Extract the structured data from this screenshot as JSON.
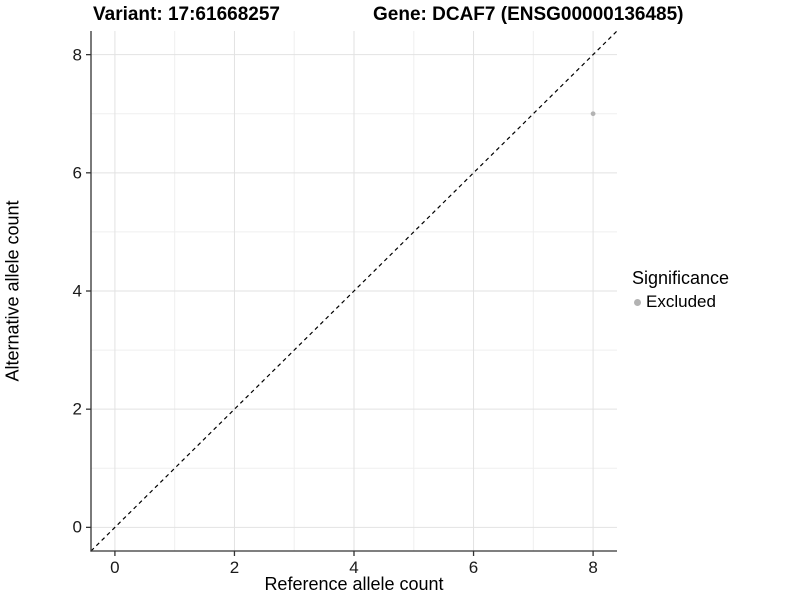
{
  "chart_data": {
    "type": "scatter",
    "title_left": "Variant: 17:61668257",
    "title_right": "Gene: DCAF7 (ENSG00000136485)",
    "xlabel": "Reference allele count",
    "ylabel": "Alternative allele count",
    "xlim": [
      -0.4,
      8.4
    ],
    "ylim": [
      -0.4,
      8.4
    ],
    "x_major_ticks": [
      0,
      2,
      4,
      6,
      8
    ],
    "y_major_ticks": [
      0,
      2,
      4,
      6,
      8
    ],
    "x_minor_gridlines": [
      1,
      3,
      5,
      7
    ],
    "y_minor_gridlines": [
      1,
      3,
      5,
      7
    ],
    "grid": "major and minor gridlines on white background",
    "series": [
      {
        "name": "Excluded",
        "marker": "dot",
        "color": "#b3b3b3",
        "points": [
          {
            "x": 8,
            "y": 7
          }
        ]
      }
    ],
    "reference_line": {
      "kind": "identity y=x",
      "style": "dashed",
      "color": "#000000",
      "from": [
        -0.4,
        -0.4
      ],
      "to": [
        8.4,
        8.4
      ]
    },
    "legend": {
      "title": "Significance",
      "position": "right",
      "items": [
        {
          "label": "Excluded",
          "color": "#b3b3b3"
        }
      ]
    }
  },
  "colors": {
    "background": "#ffffff",
    "grid_major": "#e2e2e2",
    "grid_minor": "#efefef",
    "axis_line": "#333333",
    "tick_mark": "#333333",
    "tick_label": "#1a1a1a",
    "point": "#b3b3b3"
  }
}
